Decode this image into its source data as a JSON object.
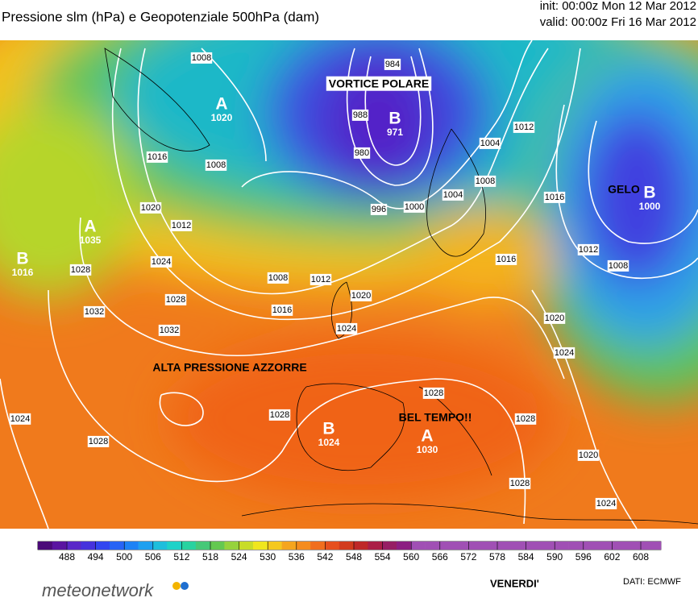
{
  "header": {
    "title": "Pressione slm (hPa) e Geopotenziale 500hPa (dam)",
    "init": "init: 00:00z Mon 12 Mar 2012",
    "valid": "valid: 00:00z Fri 16 Mar 2012"
  },
  "annotations": [
    "VORTICE POLARE",
    "ALTA PRESSIONE AZZORRE",
    "BEL TEMPO!!",
    "GELO"
  ],
  "centers": [
    {
      "letter": "A",
      "value": "1020"
    },
    {
      "letter": "B",
      "value": "971"
    },
    {
      "letter": "A",
      "value": "1035"
    },
    {
      "letter": "B",
      "value": "1016"
    },
    {
      "letter": "B",
      "value": "1000"
    },
    {
      "letter": "B",
      "value": "1024"
    },
    {
      "letter": "A",
      "value": "1030"
    }
  ],
  "isobar_labels": [
    "1008",
    "984",
    "988",
    "980",
    "1016",
    "1008",
    "1020",
    "1012",
    "1024",
    "1028",
    "1032",
    "1028",
    "1032",
    "1008",
    "1012",
    "1016",
    "1020",
    "1024",
    "996",
    "1000",
    "1004",
    "1008",
    "1004",
    "1012",
    "1016",
    "1012",
    "1008",
    "1016",
    "1020",
    "1024",
    "1028",
    "1028",
    "1024",
    "1028",
    "1028",
    "1020",
    "1028",
    "1024"
  ],
  "colorbar_ticks": [
    488,
    494,
    500,
    506,
    512,
    518,
    524,
    530,
    536,
    542,
    548,
    554,
    560,
    566,
    572,
    578,
    584,
    590,
    596,
    602,
    608
  ],
  "footer": {
    "brand": "meteonetwork",
    "day": "VENERDI'",
    "source": "DATI:  ECMWF"
  }
}
